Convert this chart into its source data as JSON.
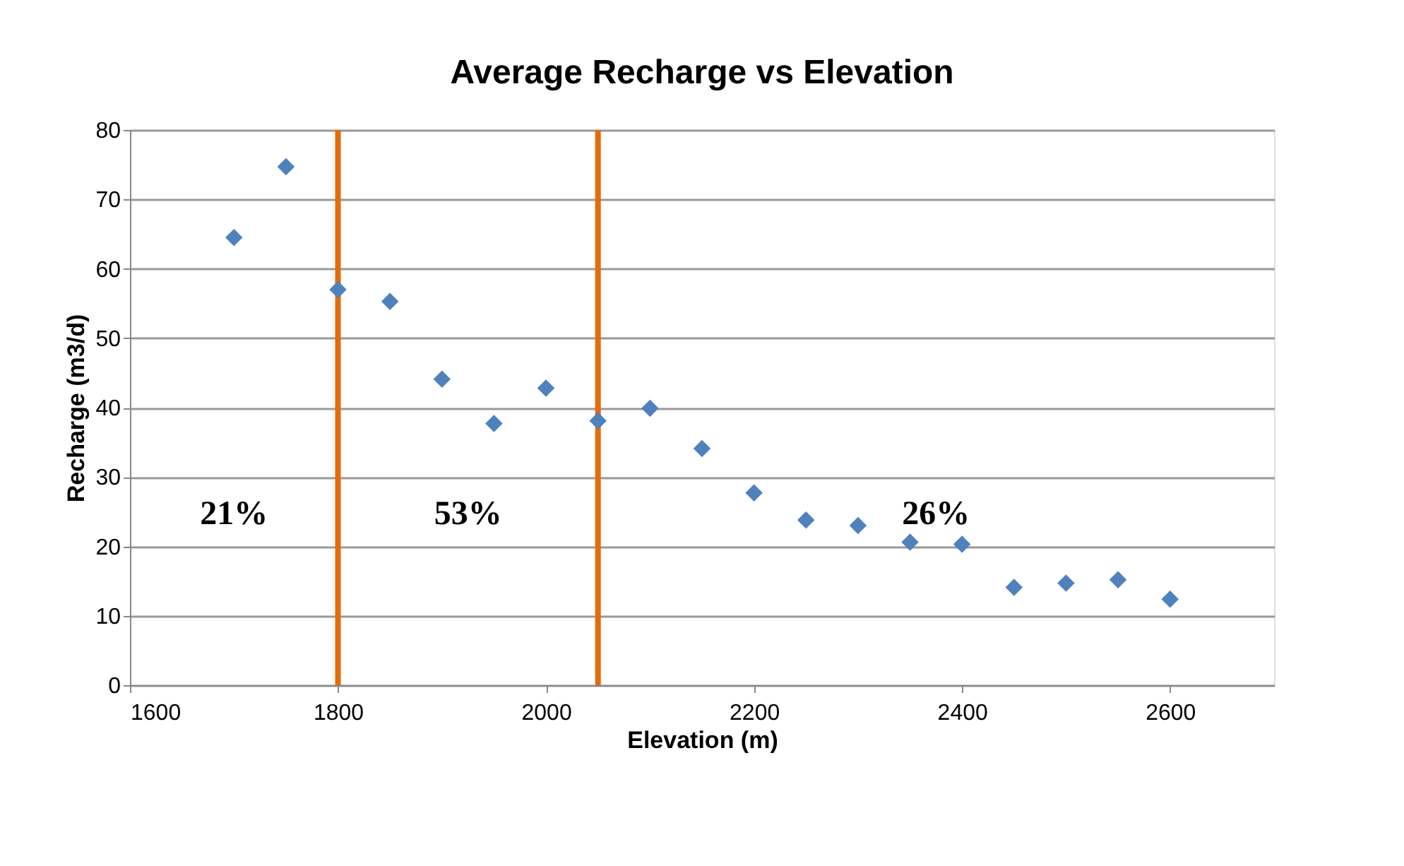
{
  "chart_data": {
    "type": "scatter",
    "title": "Average Recharge vs Elevation",
    "xlabel": "Elevation (m)",
    "ylabel": "Recharge (m3/d)",
    "x": [
      1700,
      1750,
      1800,
      1850,
      1900,
      1950,
      2000,
      2050,
      2100,
      2150,
      2200,
      2250,
      2300,
      2350,
      2400,
      2450,
      2500,
      2550,
      2600
    ],
    "series": [
      {
        "color": "#4f81bd",
        "values": [
          64.5,
          74.7,
          57.0,
          55.3,
          44.1,
          37.7,
          42.8,
          38.1,
          39.9,
          34.1,
          27.7,
          23.8,
          23.0,
          20.6,
          20.3,
          14.1,
          14.7,
          15.2,
          12.4
        ]
      }
    ],
    "xlim": [
      1600,
      2700
    ],
    "xticks": [
      1600,
      1800,
      2000,
      2200,
      2400,
      2600
    ],
    "ylim": [
      0,
      80
    ],
    "yticks": [
      0,
      10,
      20,
      30,
      40,
      50,
      60,
      70,
      80
    ],
    "grid": "y",
    "marker": "diamond",
    "ref_lines": [
      {
        "axis": "x",
        "value": 1800,
        "color": "#e46c0a"
      },
      {
        "axis": "x",
        "value": 2050,
        "color": "#e46c0a"
      }
    ],
    "annotations": [
      "21%",
      "53%",
      "26%"
    ]
  }
}
